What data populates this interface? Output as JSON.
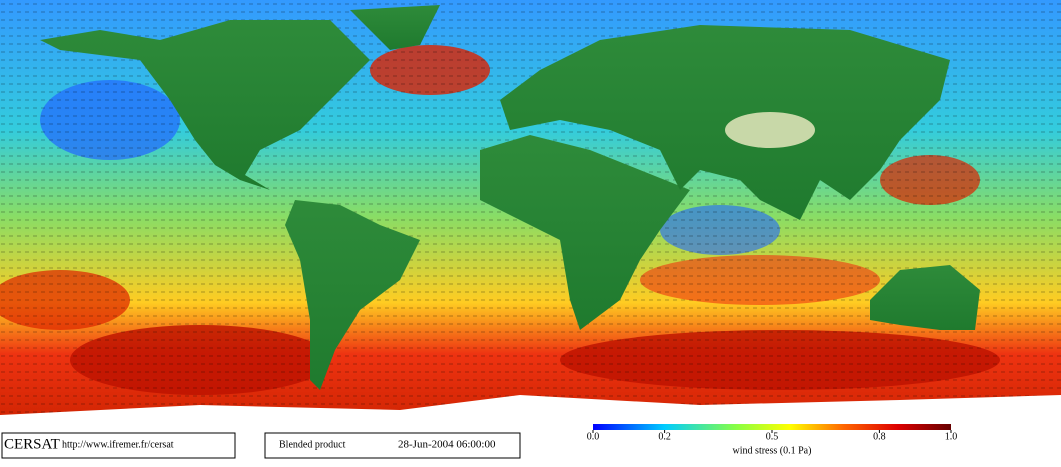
{
  "header": {
    "logo": "CERSAT",
    "url": "http://www.ifremer.fr/cersat"
  },
  "product": {
    "name": "Blended product",
    "date": "28-Jun-2004 06:00:00"
  },
  "colorbar": {
    "title": "wind stress (0.1 Pa)",
    "range": [
      0,
      1
    ],
    "ticks": [
      {
        "value": 0,
        "label": "0.0"
      },
      0.2,
      0.5,
      0.8,
      {
        "value": 1,
        "label": "1.0"
      }
    ]
  }
}
